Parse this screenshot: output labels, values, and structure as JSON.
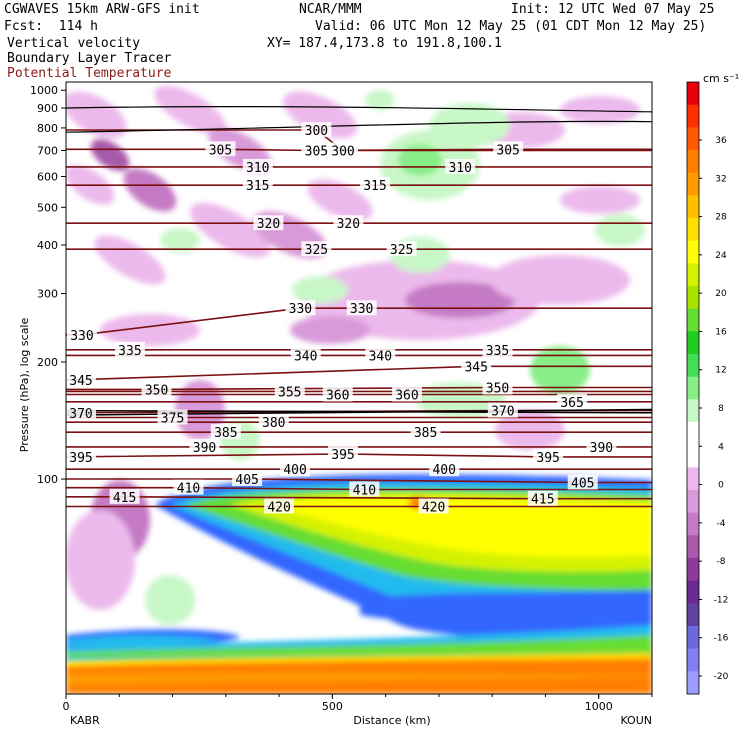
{
  "header": {
    "line1_left": "CGWAVES 15km ARW-GFS init",
    "line1_mid": "NCAR/MMM",
    "line1_right": "Init: 12 UTC Wed 07 May 25",
    "line2_left": "Fcst:  114 h",
    "line2_right": "Valid: 06 UTC Mon 12 May 25 (01 CDT Mon 12 May 25)",
    "line3_left": "Vertical velocity",
    "line3_right": "XY= 187.4,173.8 to 191.8,100.1",
    "line4_left": "Boundary Layer Tracer",
    "line5_left": "Potential Temperature"
  },
  "colors": {
    "theta": "#7a1010",
    "tracer": "#000000"
  },
  "chart_data": {
    "type": "contour-cross-section",
    "xlabel": "Distance (km)",
    "ylabel": "Pressure (hPa), log scale",
    "xlim": [
      0,
      1100
    ],
    "ylim": [
      1050,
      28
    ],
    "x_ticks": [
      0,
      500,
      1000
    ],
    "y_ticks": [
      100,
      200,
      300,
      400,
      500,
      600,
      700,
      800,
      900,
      1000
    ],
    "left_endpoint": "KABR",
    "right_endpoint": "KOUN",
    "colorbar": {
      "unit": "cm s⁻¹",
      "tick_labels": [
        "36",
        "32",
        "28",
        "24",
        "20",
        "16",
        "12",
        "8",
        "4",
        "0",
        "-4",
        "-8",
        "-12",
        "-16",
        "-20"
      ],
      "colors": [
        "#e8000b",
        "#ff3000",
        "#ff5a00",
        "#ff7e00",
        "#ff9a00",
        "#ffc000",
        "#ffe000",
        "#ffff00",
        "#d4f200",
        "#a8e400",
        "#66dd33",
        "#22cc22",
        "#44dd55",
        "#88ee88",
        "#c8f7c8",
        "#ffffff",
        "#ffffff",
        "#ecb9ec",
        "#d99ad9",
        "#c47ac4",
        "#a85aaa",
        "#8a3c96",
        "#6a2891",
        "#6040a0",
        "#6a6ad8",
        "#8080f0",
        "#9c9cff"
      ]
    },
    "theta_contours": [
      {
        "value": 300,
        "labels": [
          [
            470,
            790
          ],
          [
            520,
            700
          ]
        ]
      },
      {
        "value": 305,
        "labels": [
          [
            290,
            705
          ],
          [
            470,
            700
          ],
          [
            830,
            705
          ]
        ]
      },
      {
        "value": 310,
        "labels": [
          [
            360,
            635
          ],
          [
            740,
            635
          ]
        ]
      },
      {
        "value": 315,
        "labels": [
          [
            360,
            570
          ],
          [
            580,
            570
          ]
        ]
      },
      {
        "value": 320,
        "labels": [
          [
            380,
            455
          ],
          [
            530,
            455
          ]
        ]
      },
      {
        "value": 325,
        "labels": [
          [
            470,
            390
          ],
          [
            630,
            390
          ]
        ]
      },
      {
        "value": 330,
        "labels": [
          [
            30,
            235
          ],
          [
            440,
            275
          ],
          [
            555,
            275
          ]
        ]
      },
      {
        "value": 335,
        "labels": [
          [
            120,
            215
          ],
          [
            810,
            215
          ]
        ]
      },
      {
        "value": 340,
        "labels": [
          [
            450,
            208
          ],
          [
            590,
            208
          ]
        ]
      },
      {
        "value": 345,
        "labels": [
          [
            18,
            180
          ],
          [
            770,
            195
          ]
        ]
      },
      {
        "value": 350,
        "labels": [
          [
            170,
            170
          ],
          [
            810,
            172
          ]
        ]
      },
      {
        "value": 355,
        "labels": [
          [
            420,
            168
          ]
        ]
      },
      {
        "value": 360,
        "labels": [
          [
            510,
            165
          ],
          [
            640,
            165
          ]
        ]
      },
      {
        "value": 365,
        "labels": [
          [
            950,
            158
          ]
        ]
      },
      {
        "value": 370,
        "labels": [
          [
            2,
            148
          ],
          [
            820,
            150
          ]
        ]
      },
      {
        "value": 375,
        "labels": [
          [
            200,
            144
          ]
        ]
      },
      {
        "value": 380,
        "labels": [
          [
            390,
            140
          ]
        ]
      },
      {
        "value": 385,
        "labels": [
          [
            300,
            132
          ],
          [
            675,
            132
          ]
        ]
      },
      {
        "value": 390,
        "labels": [
          [
            260,
            121
          ],
          [
            1005,
            121
          ]
        ]
      },
      {
        "value": 395,
        "labels": [
          [
            0,
            114
          ],
          [
            520,
            116
          ],
          [
            905,
            114
          ]
        ]
      },
      {
        "value": 400,
        "labels": [
          [
            430,
            106
          ],
          [
            710,
            106
          ]
        ]
      },
      {
        "value": 405,
        "labels": [
          [
            340,
            100
          ],
          [
            970,
            98
          ]
        ]
      },
      {
        "value": 410,
        "labels": [
          [
            230,
            95
          ],
          [
            560,
            94
          ]
        ]
      },
      {
        "value": 415,
        "labels": [
          [
            110,
            90
          ],
          [
            895,
            89
          ]
        ]
      },
      {
        "value": 420,
        "labels": [
          [
            400,
            85
          ],
          [
            690,
            85
          ]
        ]
      }
    ]
  }
}
